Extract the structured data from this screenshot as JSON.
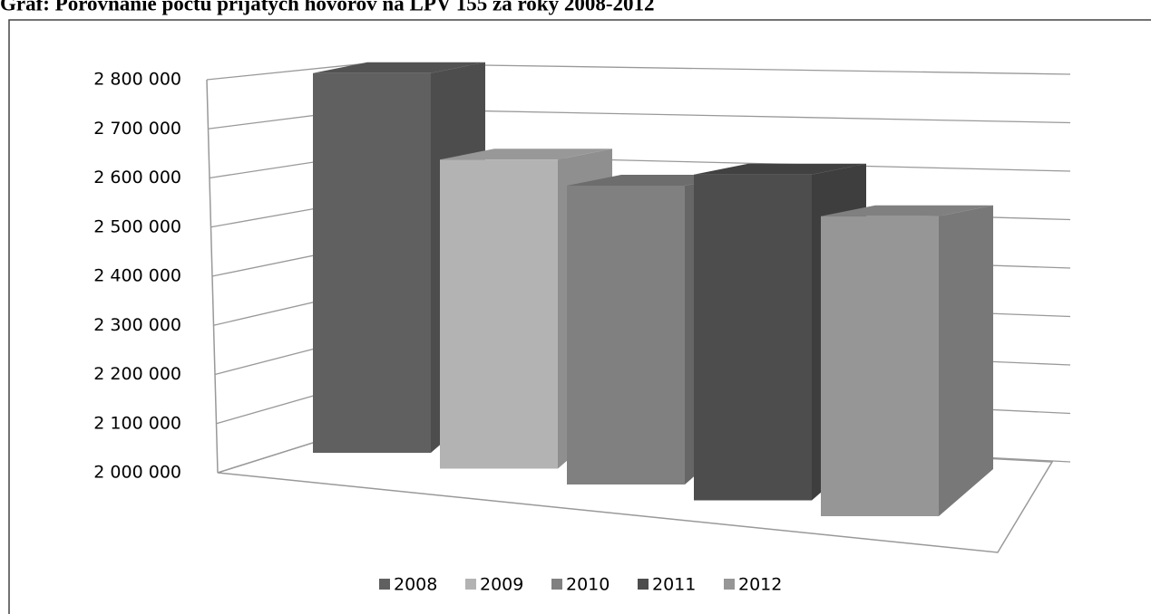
{
  "chart_data": {
    "type": "bar3d",
    "title": "Graf: Porovnanie počtu prijatých hovorov na LPV 155 za roky 2008-2012",
    "categories": [
      null
    ],
    "series": [
      {
        "name": "2008",
        "color": "#606060",
        "values": [
          2780000
        ]
      },
      {
        "name": "2009",
        "color": "#b3b3b3",
        "values": [
          2600000
        ]
      },
      {
        "name": "2010",
        "color": "#808080",
        "values": [
          2550000
        ]
      },
      {
        "name": "2011",
        "color": "#4d4d4d",
        "values": [
          2570000
        ]
      },
      {
        "name": "2012",
        "color": "#969696",
        "values": [
          2500000
        ]
      }
    ],
    "ylim": [
      2000000,
      2800000
    ],
    "yticks": [
      {
        "value": 2000000,
        "label": "2 000 000"
      },
      {
        "value": 2100000,
        "label": "2 100 000"
      },
      {
        "value": 2200000,
        "label": "2 200 000"
      },
      {
        "value": 2300000,
        "label": "2 300 000"
      },
      {
        "value": 2400000,
        "label": "2 400 000"
      },
      {
        "value": 2500000,
        "label": "2 500 000"
      },
      {
        "value": 2600000,
        "label": "2 600 000"
      },
      {
        "value": 2700000,
        "label": "2 700 000"
      },
      {
        "value": 2800000,
        "label": "2 800 000"
      }
    ],
    "grid": true,
    "legend": "bottom"
  }
}
